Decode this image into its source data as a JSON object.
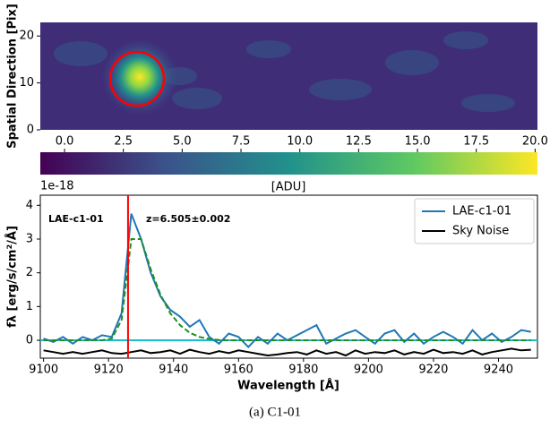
{
  "chart_data": [
    {
      "type": "image",
      "ylabel": "Spatial Direction [Pix]",
      "ylim": [
        0,
        22.9
      ],
      "yticks": [
        0,
        10,
        20
      ],
      "colorbar": {
        "label": "[ADU]",
        "xlim": [
          -1.03,
          20.1
        ],
        "xticks": [
          {
            "value": 0,
            "label": "0.0"
          },
          {
            "value": 2.5,
            "label": "2.5"
          },
          {
            "value": 5,
            "label": "5.0"
          },
          {
            "value": 7.5,
            "label": "7.5"
          },
          {
            "value": 10,
            "label": "10.0"
          },
          {
            "value": 12.5,
            "label": "12.5"
          },
          {
            "value": 15,
            "label": "15.0"
          },
          {
            "value": 17.5,
            "label": "17.5"
          },
          {
            "value": 20,
            "label": "20.0"
          }
        ]
      }
    },
    {
      "type": "line",
      "xlabel": "Wavelength [Å]",
      "ylabel": "fλ  [erg/s/cm²/Å]",
      "offset_text": "1e-18",
      "annotations": [
        "LAE-c1-01",
        "z=6.505±0.002"
      ],
      "xlim": [
        9099,
        9252
      ],
      "xticks": [
        9100,
        9120,
        9140,
        9160,
        9180,
        9200,
        9220,
        9240
      ],
      "ylim": [
        -0.53,
        4.3
      ],
      "yticks": [
        0,
        1,
        2,
        3,
        4
      ],
      "vline": {
        "value": 9126,
        "color": "#ff0000"
      },
      "hline": {
        "value": 0,
        "color": "#17becf"
      },
      "legend": "upper right",
      "x": [
        9100,
        9103,
        9106,
        9109,
        9112,
        9115,
        9118,
        9121,
        9124,
        9127,
        9130,
        9133,
        9136,
        9139,
        9142,
        9145,
        9148,
        9151,
        9154,
        9157,
        9160,
        9163,
        9166,
        9169,
        9172,
        9175,
        9178,
        9181,
        9184,
        9187,
        9190,
        9193,
        9196,
        9199,
        9202,
        9205,
        9208,
        9211,
        9214,
        9217,
        9220,
        9223,
        9226,
        9229,
        9232,
        9235,
        9238,
        9241,
        9244,
        9247,
        9250
      ],
      "series": [
        {
          "name": "LAE-c1-01",
          "color": "#1f77b4",
          "values": [
            0.05,
            -0.05,
            0.1,
            -0.1,
            0.1,
            0.0,
            0.15,
            0.1,
            0.8,
            3.75,
            3.0,
            2.0,
            1.3,
            0.9,
            0.7,
            0.4,
            0.6,
            0.1,
            -0.1,
            0.2,
            0.1,
            -0.2,
            0.1,
            -0.1,
            0.2,
            0.0,
            0.15,
            0.3,
            0.45,
            -0.1,
            0.05,
            0.2,
            0.3,
            0.1,
            -0.1,
            0.2,
            0.3,
            -0.05,
            0.2,
            -0.1,
            0.1,
            0.25,
            0.1,
            -0.1,
            0.3,
            0.0,
            0.2,
            -0.05,
            0.1,
            0.3,
            0.25
          ]
        },
        {
          "name": "Sky Noise",
          "color": "#000000",
          "values": [
            -0.3,
            -0.35,
            -0.4,
            -0.35,
            -0.4,
            -0.35,
            -0.3,
            -0.38,
            -0.4,
            -0.35,
            -0.3,
            -0.38,
            -0.35,
            -0.3,
            -0.4,
            -0.28,
            -0.35,
            -0.4,
            -0.32,
            -0.38,
            -0.3,
            -0.35,
            -0.4,
            -0.45,
            -0.42,
            -0.38,
            -0.35,
            -0.42,
            -0.3,
            -0.4,
            -0.35,
            -0.45,
            -0.3,
            -0.4,
            -0.35,
            -0.38,
            -0.3,
            -0.42,
            -0.35,
            -0.4,
            -0.28,
            -0.38,
            -0.35,
            -0.4,
            -0.3,
            -0.42,
            -0.35,
            -0.3,
            -0.25,
            -0.3,
            -0.28
          ]
        }
      ],
      "fit": {
        "color": "#1f8f1f",
        "values": [
          0,
          0,
          0,
          0,
          0,
          0,
          0,
          0.05,
          0.6,
          3.0,
          3.0,
          2.1,
          1.35,
          0.8,
          0.45,
          0.22,
          0.1,
          0.04,
          0.01,
          0,
          0,
          0,
          0,
          0,
          0,
          0,
          0,
          0,
          0,
          0,
          0,
          0,
          0,
          0,
          0,
          0,
          0,
          0,
          0,
          0,
          0,
          0,
          0,
          0,
          0,
          0,
          0,
          0,
          0,
          0,
          0
        ]
      }
    },
    {
      "type": "caption",
      "text": "(a) C1-01"
    }
  ]
}
